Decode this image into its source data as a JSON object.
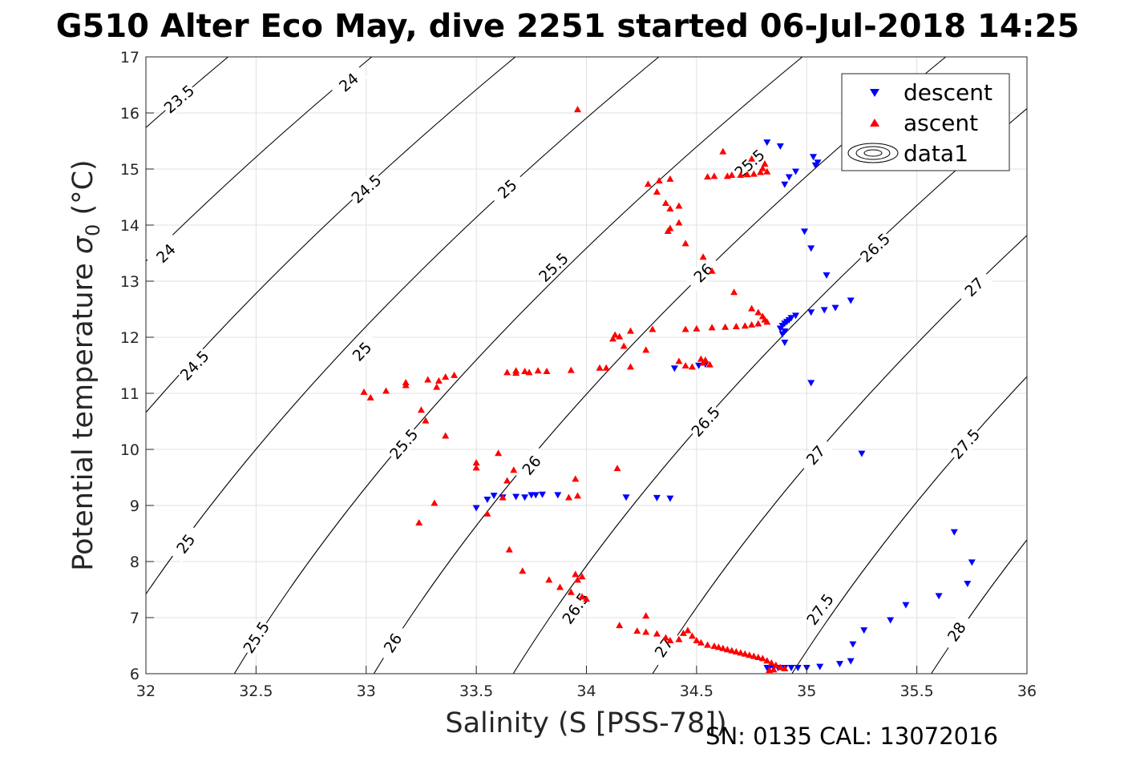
{
  "chart_data": {
    "type": "scatter",
    "title": "G510 Alter Eco May, dive 2251 started 06-Jul-2018 14:25",
    "xlabel": "Salinity (S [PSS-78])",
    "ylabel_main": "Potential temperature ",
    "ylabel_symbol": "σ",
    "ylabel_sub": "0",
    "ylabel_unit": " (°C)",
    "xlim": [
      32,
      36
    ],
    "ylim": [
      6,
      17
    ],
    "xticks": [
      32,
      32.5,
      33,
      33.5,
      34,
      34.5,
      35,
      35.5,
      36
    ],
    "yticks": [
      6,
      7,
      8,
      9,
      10,
      11,
      12,
      13,
      14,
      15,
      16,
      17
    ],
    "grid": true,
    "legend_position": "top-right",
    "footer": "SN: 0135  CAL: 13072016",
    "contours": {
      "name": "data1",
      "color": "#000000",
      "levels": [
        23.5,
        24,
        24.5,
        25,
        25.5,
        26,
        26.5,
        27,
        27.5,
        28
      ],
      "labels": [
        {
          "text": "23.5",
          "x": 32.15,
          "y": 16.25
        },
        {
          "text": "24",
          "x": 32.92,
          "y": 16.55
        },
        {
          "text": "24",
          "x": 32.09,
          "y": 13.5
        },
        {
          "text": "24.5",
          "x": 33.0,
          "y": 14.65
        },
        {
          "text": "24.5",
          "x": 32.22,
          "y": 11.5
        },
        {
          "text": "25",
          "x": 33.64,
          "y": 14.65
        },
        {
          "text": "25",
          "x": 32.98,
          "y": 11.75
        },
        {
          "text": "25",
          "x": 32.18,
          "y": 8.32
        },
        {
          "text": "25.5",
          "x": 34.74,
          "y": 15.1
        },
        {
          "text": "25.5",
          "x": 33.85,
          "y": 13.25
        },
        {
          "text": "25.5",
          "x": 33.17,
          "y": 10.1
        },
        {
          "text": "25.5",
          "x": 32.5,
          "y": 6.65
        },
        {
          "text": "26",
          "x": 34.53,
          "y": 13.15
        },
        {
          "text": "26",
          "x": 33.75,
          "y": 9.72
        },
        {
          "text": "26",
          "x": 33.12,
          "y": 6.55
        },
        {
          "text": "26.5",
          "x": 35.31,
          "y": 13.6
        },
        {
          "text": "26.5",
          "x": 34.54,
          "y": 10.5
        },
        {
          "text": "26.5",
          "x": 33.95,
          "y": 7.17
        },
        {
          "text": "27",
          "x": 35.76,
          "y": 12.9
        },
        {
          "text": "27",
          "x": 35.04,
          "y": 9.9
        },
        {
          "text": "27",
          "x": 34.35,
          "y": 6.47
        },
        {
          "text": "27.5",
          "x": 35.72,
          "y": 10.1
        },
        {
          "text": "27.5",
          "x": 35.06,
          "y": 7.15
        },
        {
          "text": "28",
          "x": 35.68,
          "y": 6.75
        }
      ]
    },
    "series": [
      {
        "name": "descent",
        "marker": "triangle-down",
        "color": "#0000ff",
        "points": [
          [
            34.82,
            15.47
          ],
          [
            34.88,
            15.4
          ],
          [
            35.03,
            15.21
          ],
          [
            35.04,
            15.06
          ],
          [
            35.05,
            15.11
          ],
          [
            34.95,
            14.95
          ],
          [
            34.92,
            14.85
          ],
          [
            34.9,
            14.72
          ],
          [
            34.99,
            13.88
          ],
          [
            35.02,
            13.58
          ],
          [
            35.09,
            13.1
          ],
          [
            35.2,
            12.65
          ],
          [
            35.13,
            12.52
          ],
          [
            35.08,
            12.48
          ],
          [
            35.02,
            12.44
          ],
          [
            34.95,
            12.38
          ],
          [
            34.93,
            12.34
          ],
          [
            34.92,
            12.3
          ],
          [
            34.91,
            12.27
          ],
          [
            34.9,
            12.24
          ],
          [
            34.89,
            12.2
          ],
          [
            34.88,
            12.15
          ],
          [
            34.9,
            12.1
          ],
          [
            34.89,
            12.05
          ],
          [
            34.9,
            11.9
          ],
          [
            35.02,
            11.18
          ],
          [
            35.25,
            9.92
          ],
          [
            34.4,
            11.44
          ],
          [
            34.51,
            11.49
          ],
          [
            34.54,
            11.51
          ],
          [
            33.5,
            8.95
          ],
          [
            33.55,
            9.1
          ],
          [
            33.58,
            9.17
          ],
          [
            33.62,
            9.14
          ],
          [
            33.68,
            9.15
          ],
          [
            33.72,
            9.14
          ],
          [
            33.75,
            9.18
          ],
          [
            33.77,
            9.18
          ],
          [
            33.8,
            9.19
          ],
          [
            33.87,
            9.18
          ],
          [
            34.18,
            9.14
          ],
          [
            34.32,
            9.13
          ],
          [
            34.38,
            9.12
          ],
          [
            35.67,
            8.52
          ],
          [
            35.75,
            7.98
          ],
          [
            35.73,
            7.6
          ],
          [
            35.6,
            7.38
          ],
          [
            35.45,
            7.22
          ],
          [
            35.38,
            6.95
          ],
          [
            35.26,
            6.77
          ],
          [
            35.21,
            6.52
          ],
          [
            35.2,
            6.22
          ],
          [
            35.15,
            6.17
          ],
          [
            35.06,
            6.12
          ],
          [
            35.0,
            6.1
          ],
          [
            34.96,
            6.1
          ],
          [
            34.93,
            6.1
          ],
          [
            34.9,
            6.1
          ],
          [
            34.87,
            6.1
          ],
          [
            34.85,
            6.1
          ],
          [
            34.83,
            6.1
          ],
          [
            34.82,
            6.1
          ]
        ]
      },
      {
        "name": "ascent",
        "marker": "triangle-up",
        "color": "#ff0000",
        "points": [
          [
            33.96,
            16.07
          ],
          [
            34.62,
            15.32
          ],
          [
            34.75,
            15.19
          ],
          [
            34.81,
            15.1
          ],
          [
            34.8,
            15.02
          ],
          [
            34.79,
            14.95
          ],
          [
            34.82,
            14.96
          ],
          [
            34.76,
            14.92
          ],
          [
            34.73,
            14.91
          ],
          [
            34.7,
            14.9
          ],
          [
            34.66,
            14.9
          ],
          [
            34.64,
            14.88
          ],
          [
            34.58,
            14.88
          ],
          [
            34.55,
            14.87
          ],
          [
            34.38,
            14.83
          ],
          [
            34.33,
            14.8
          ],
          [
            34.28,
            14.74
          ],
          [
            34.32,
            14.6
          ],
          [
            34.36,
            14.4
          ],
          [
            34.38,
            14.3
          ],
          [
            34.42,
            14.35
          ],
          [
            34.42,
            14.05
          ],
          [
            34.38,
            13.95
          ],
          [
            34.37,
            13.9
          ],
          [
            34.45,
            13.68
          ],
          [
            34.53,
            13.44
          ],
          [
            34.57,
            13.19
          ],
          [
            34.67,
            12.81
          ],
          [
            34.75,
            12.52
          ],
          [
            34.78,
            12.45
          ],
          [
            34.8,
            12.38
          ],
          [
            34.81,
            12.32
          ],
          [
            34.82,
            12.28
          ],
          [
            34.78,
            12.25
          ],
          [
            34.75,
            12.23
          ],
          [
            34.72,
            12.21
          ],
          [
            34.68,
            12.2
          ],
          [
            34.63,
            12.19
          ],
          [
            34.57,
            12.18
          ],
          [
            34.5,
            12.16
          ],
          [
            34.45,
            12.15
          ],
          [
            34.3,
            12.15
          ],
          [
            34.2,
            12.12
          ],
          [
            34.13,
            12.05
          ],
          [
            34.15,
            12.02
          ],
          [
            34.12,
            11.98
          ],
          [
            34.17,
            11.85
          ],
          [
            34.27,
            11.78
          ],
          [
            34.52,
            11.62
          ],
          [
            34.54,
            11.6
          ],
          [
            34.53,
            11.55
          ],
          [
            34.56,
            11.52
          ],
          [
            34.48,
            11.48
          ],
          [
            34.45,
            11.5
          ],
          [
            34.42,
            11.58
          ],
          [
            34.2,
            11.48
          ],
          [
            34.06,
            11.46
          ],
          [
            34.09,
            11.46
          ],
          [
            33.93,
            11.42
          ],
          [
            33.82,
            11.4
          ],
          [
            33.78,
            11.41
          ],
          [
            33.74,
            11.38
          ],
          [
            33.72,
            11.4
          ],
          [
            33.68,
            11.37
          ],
          [
            33.68,
            11.41
          ],
          [
            33.64,
            11.38
          ],
          [
            33.36,
            11.3
          ],
          [
            33.4,
            11.33
          ],
          [
            33.33,
            11.23
          ],
          [
            33.28,
            11.25
          ],
          [
            33.18,
            11.2
          ],
          [
            33.18,
            11.15
          ],
          [
            33.32,
            11.12
          ],
          [
            33.09,
            11.05
          ],
          [
            32.99,
            11.03
          ],
          [
            33.02,
            10.93
          ],
          [
            33.25,
            10.71
          ],
          [
            33.27,
            10.52
          ],
          [
            33.36,
            10.25
          ],
          [
            33.6,
            9.94
          ],
          [
            33.5,
            9.77
          ],
          [
            33.5,
            9.68
          ],
          [
            33.67,
            9.64
          ],
          [
            33.64,
            9.45
          ],
          [
            33.95,
            9.48
          ],
          [
            34.14,
            9.67
          ],
          [
            33.96,
            9.18
          ],
          [
            33.92,
            9.15
          ],
          [
            33.62,
            9.15
          ],
          [
            33.31,
            9.05
          ],
          [
            33.24,
            8.7
          ],
          [
            33.55,
            8.86
          ],
          [
            33.65,
            8.22
          ],
          [
            33.71,
            7.84
          ],
          [
            33.83,
            7.68
          ],
          [
            33.95,
            7.78
          ],
          [
            33.98,
            7.74
          ],
          [
            33.96,
            7.68
          ],
          [
            33.88,
            7.55
          ],
          [
            33.93,
            7.46
          ],
          [
            34.0,
            7.34
          ],
          [
            33.98,
            7.38
          ],
          [
            34.27,
            7.04
          ],
          [
            34.15,
            6.87
          ],
          [
            34.23,
            6.77
          ],
          [
            34.27,
            6.75
          ],
          [
            34.32,
            6.72
          ],
          [
            34.36,
            6.65
          ],
          [
            34.38,
            6.6
          ],
          [
            34.42,
            6.62
          ],
          [
            34.44,
            6.73
          ],
          [
            34.46,
            6.78
          ],
          [
            34.48,
            6.68
          ],
          [
            34.5,
            6.6
          ],
          [
            34.52,
            6.56
          ],
          [
            34.55,
            6.52
          ],
          [
            34.58,
            6.5
          ],
          [
            34.6,
            6.48
          ],
          [
            34.62,
            6.46
          ],
          [
            34.64,
            6.44
          ],
          [
            34.66,
            6.42
          ],
          [
            34.68,
            6.4
          ],
          [
            34.7,
            6.38
          ],
          [
            34.72,
            6.36
          ],
          [
            34.74,
            6.34
          ],
          [
            34.76,
            6.32
          ],
          [
            34.78,
            6.3
          ],
          [
            34.8,
            6.28
          ],
          [
            34.82,
            6.24
          ],
          [
            34.84,
            6.2
          ],
          [
            34.86,
            6.16
          ],
          [
            34.88,
            6.12
          ],
          [
            34.9,
            6.1
          ],
          [
            34.85,
            6.08
          ],
          [
            34.83,
            6.07
          ]
        ]
      }
    ]
  }
}
